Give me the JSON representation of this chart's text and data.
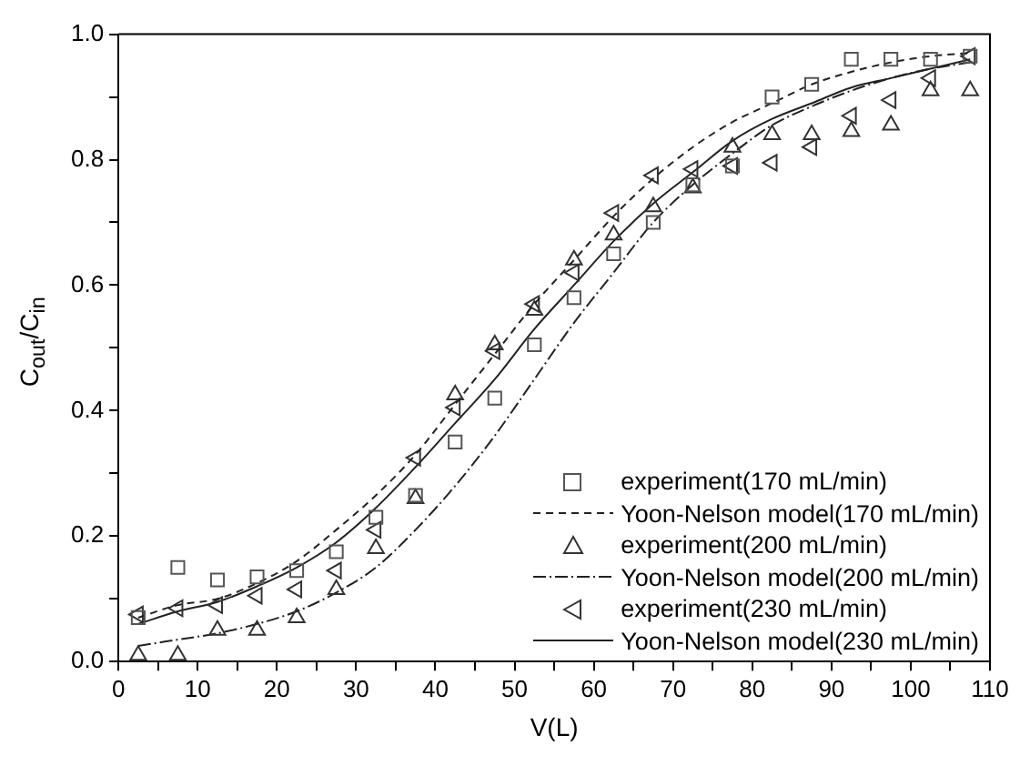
{
  "chart_data": {
    "type": "scatter",
    "xlabel": "V(L)",
    "ylabel": "C$_{out}$/C$_{in}$",
    "x": [
      2.5,
      7.5,
      12.5,
      17.5,
      22.5,
      27.5,
      32.5,
      37.5,
      42.5,
      47.5,
      52.5,
      57.5,
      62.5,
      67.5,
      72.5,
      77.5,
      82.5,
      87.5,
      92.5,
      97.5,
      102.5,
      107.5
    ],
    "series": [
      {
        "name": "experiment(170 mL/min)",
        "marker": "square",
        "color": "#555555",
        "values": [
          0.07,
          0.15,
          0.13,
          0.135,
          0.145,
          0.175,
          0.23,
          0.265,
          0.35,
          0.42,
          0.505,
          0.58,
          0.65,
          0.7,
          0.76,
          0.79,
          0.9,
          0.92,
          0.96,
          0.96,
          0.96,
          0.965
        ]
      },
      {
        "name": "Yoon-Nelson model(170 mL/min)",
        "type": "line",
        "line_style": "dashed",
        "color": "#222222",
        "values": [
          0.07,
          0.09,
          0.1,
          0.125,
          0.16,
          0.21,
          0.265,
          0.33,
          0.41,
          0.49,
          0.57,
          0.64,
          0.71,
          0.77,
          0.82,
          0.86,
          0.89,
          0.92,
          0.94,
          0.955,
          0.965,
          0.97
        ]
      },
      {
        "name": "experiment(200 mL/min)",
        "marker": "triangle",
        "color": "#333333",
        "values": [
          0.01,
          0.01,
          0.05,
          0.05,
          0.07,
          0.115,
          0.18,
          0.26,
          0.425,
          0.505,
          0.56,
          0.64,
          0.68,
          0.725,
          0.755,
          0.82,
          0.84,
          0.84,
          0.845,
          0.855,
          0.91,
          0.91
        ]
      },
      {
        "name": "Yoon-Nelson model(200 mL/min)",
        "type": "line",
        "line_style": "dashdot",
        "color": "#222222",
        "values": [
          0.025,
          0.035,
          0.045,
          0.06,
          0.08,
          0.11,
          0.15,
          0.21,
          0.28,
          0.36,
          0.45,
          0.54,
          0.62,
          0.7,
          0.76,
          0.81,
          0.855,
          0.885,
          0.91,
          0.93,
          0.945,
          0.955
        ]
      },
      {
        "name": "experiment(230 mL/min)",
        "marker": "triangle-left",
        "color": "#333333",
        "values": [
          0.075,
          0.085,
          0.09,
          0.105,
          0.115,
          0.145,
          0.21,
          0.325,
          0.405,
          0.495,
          0.57,
          0.62,
          0.715,
          0.775,
          0.785,
          0.79,
          0.795,
          0.82,
          0.87,
          0.895,
          0.93,
          0.965
        ]
      },
      {
        "name": "Yoon-Nelson model(230 mL/min)",
        "type": "line",
        "line_style": "solid",
        "color": "#222222",
        "values": [
          0.06,
          0.08,
          0.095,
          0.12,
          0.15,
          0.19,
          0.245,
          0.31,
          0.38,
          0.45,
          0.53,
          0.6,
          0.67,
          0.73,
          0.78,
          0.83,
          0.865,
          0.89,
          0.915,
          0.93,
          0.945,
          0.96
        ]
      }
    ],
    "xlim": [
      0,
      110
    ],
    "xticks": [
      0,
      {
        "value": 5,
        "label": null
      },
      10,
      {
        "value": 15,
        "label": null
      },
      20,
      {
        "value": 25,
        "label": null
      },
      30,
      {
        "value": 35,
        "label": null
      },
      40,
      {
        "value": 45,
        "label": null
      },
      50,
      {
        "value": 55,
        "label": null
      },
      60,
      {
        "value": 65,
        "label": null
      },
      70,
      {
        "value": 75,
        "label": null
      },
      80,
      {
        "value": 85,
        "label": null
      },
      90,
      {
        "value": 95,
        "label": null
      },
      100,
      {
        "value": 105,
        "label": null
      },
      110
    ],
    "ylim": [
      0,
      1
    ],
    "yticks": [
      {
        "value": 0,
        "label": "0.0"
      },
      {
        "value": 0.1,
        "label": null
      },
      {
        "value": 0.2,
        "label": "0.2"
      },
      {
        "value": 0.3,
        "label": null
      },
      {
        "value": 0.4,
        "label": "0.4"
      },
      {
        "value": 0.5,
        "label": null
      },
      {
        "value": 0.6,
        "label": "0.6"
      },
      {
        "value": 0.7,
        "label": null
      },
      {
        "value": 0.8,
        "label": "0.8"
      },
      {
        "value": 0.9,
        "label": null
      },
      {
        "value": 1,
        "label": "1.0"
      }
    ],
    "grid": false,
    "legend": "bottom right"
  }
}
